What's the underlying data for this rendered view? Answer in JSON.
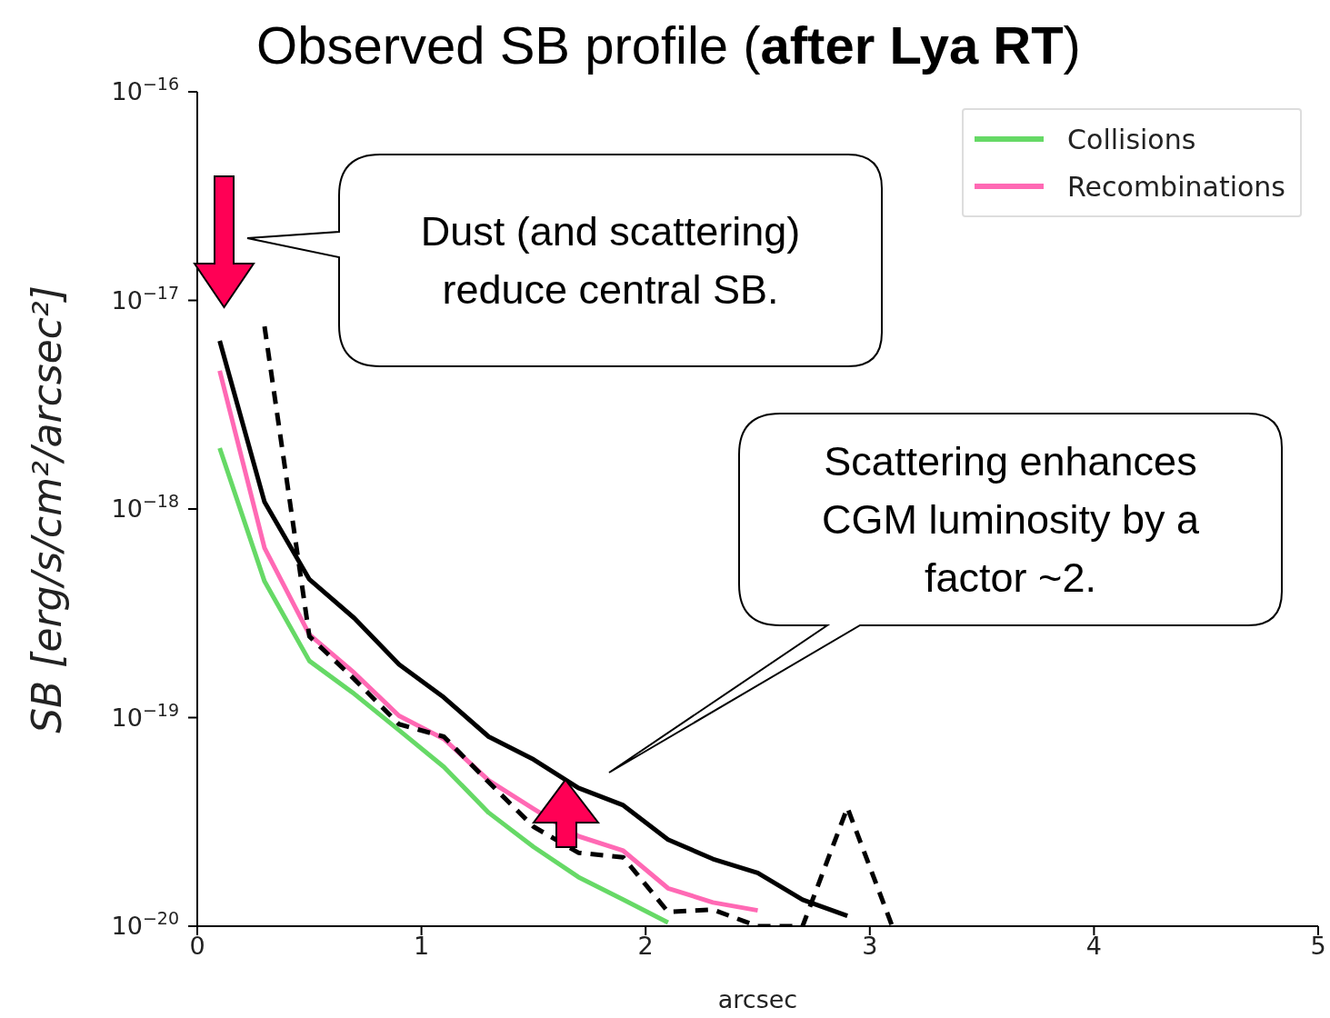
{
  "chart_data": {
    "type": "line",
    "title": "Observed SB profile (after Lya RT)",
    "xlabel": "arcsec",
    "ylabel": "SB [erg/s/cm²/arcsec²]",
    "x": [
      0.1,
      0.3,
      0.5,
      0.7,
      0.9,
      1.1,
      1.3,
      1.5,
      1.7,
      1.9,
      2.1,
      2.3,
      2.5,
      2.7,
      2.9,
      3.1
    ],
    "series": [
      {
        "name": "Collisions",
        "color": "#66d966",
        "values": [
          1.96e-18,
          4.5e-19,
          1.87e-19,
          1.3e-19,
          8.7e-20,
          5.8e-20,
          3.5e-20,
          2.4e-20,
          1.72e-20,
          1.34e-20,
          1.04e-20,
          null,
          null,
          null,
          null,
          null
        ]
      },
      {
        "name": "Recombinations",
        "color": "#ff69b4",
        "values": [
          4.6e-18,
          6.5e-19,
          2.5e-19,
          1.64e-19,
          1.02e-19,
          7.9e-20,
          5e-20,
          3.65e-20,
          2.7e-20,
          2.3e-20,
          1.52e-20,
          1.3e-20,
          1.19e-20,
          null,
          null,
          null
        ]
      },
      {
        "color": "#000000",
        "values": [
          6.4e-18,
          1.08e-18,
          4.6e-19,
          3e-19,
          1.8e-19,
          1.25e-19,
          8.1e-20,
          6.3e-20,
          4.6e-20,
          3.8e-20,
          2.6e-20,
          2.1e-20,
          1.8e-20,
          1.34e-20,
          1.12e-20,
          null
        ]
      },
      {
        "color": "#000000",
        "line_style": "dashed",
        "values": [
          null,
          7.5e-18,
          2.45e-19,
          1.53e-19,
          9.3e-20,
          8.1e-20,
          4.9e-20,
          3e-20,
          2.25e-20,
          2.14e-20,
          1.17e-20,
          1.2e-20,
          1e-20,
          1e-20,
          3.7e-20,
          1e-20
        ]
      }
    ],
    "xlim": [
      0,
      5
    ],
    "xticks": [
      0,
      1,
      2,
      3,
      4,
      5
    ],
    "ylim": [
      1e-20,
      1e-16
    ],
    "log": true,
    "yticks": [
      {
        "value": 1e-20,
        "label": "10$^{−20}$"
      },
      {
        "value": 1e-19,
        "label": "10$^{−19}$"
      },
      {
        "value": 1e-18,
        "label": "10$^{−18}$"
      },
      {
        "value": 1e-17,
        "label": "10$^{−17}$"
      },
      {
        "value": 1e-16,
        "label": "10$^{−16}$"
      }
    ],
    "legend": "top right",
    "grid": false,
    "annotations": [
      "Dust (and scattering) reduce central SB.",
      "Scattering enhances CGM luminosity by a factor ~2."
    ]
  }
}
